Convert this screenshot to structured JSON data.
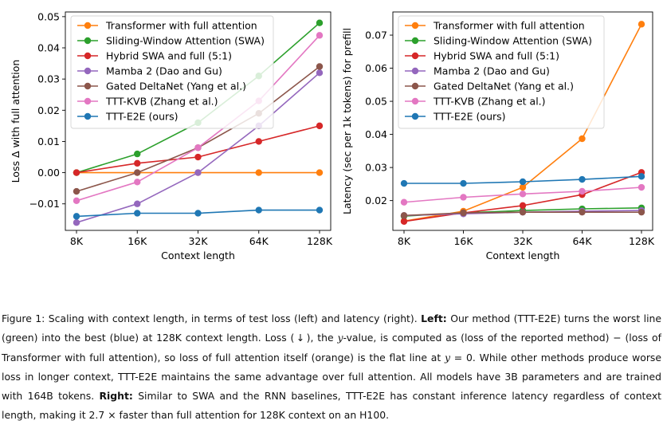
{
  "chart_data": [
    {
      "type": "line",
      "ylabel": "Loss Δ with full attention",
      "xlabel": "Context length",
      "categories": [
        "8K",
        "16K",
        "32K",
        "64K",
        "128K"
      ],
      "ylim": [
        -0.0185,
        0.0515
      ],
      "yticks": [
        -0.01,
        0.0,
        0.01,
        0.02,
        0.03,
        0.04,
        0.05
      ],
      "ytick_labels": [
        "−0.01",
        "0.00",
        "0.01",
        "0.02",
        "0.03",
        "0.04",
        "0.05"
      ],
      "legend_position": "top-left",
      "series": [
        {
          "name": "Transformer with full attention",
          "color": "#ff7f0e",
          "values": [
            0.0,
            0.0,
            0.0,
            0.0,
            0.0
          ]
        },
        {
          "name": "Sliding-Window Attention (SWA)",
          "color": "#2ca02c",
          "values": [
            0.0,
            0.006,
            0.016,
            0.031,
            0.048
          ]
        },
        {
          "name": "Hybrid SWA and full (5:1)",
          "color": "#d62728",
          "values": [
            0.0,
            0.003,
            0.005,
            0.01,
            0.015
          ]
        },
        {
          "name": "Mamba 2 (Dao and Gu)",
          "color": "#9467bd",
          "values": [
            -0.016,
            -0.01,
            0.0,
            0.015,
            0.032
          ]
        },
        {
          "name": "Gated DeltaNet (Yang et al.)",
          "color": "#8c564b",
          "values": [
            -0.006,
            0.0,
            0.008,
            0.019,
            0.034
          ]
        },
        {
          "name": "TTT-KVB (Zhang et al.)",
          "color": "#e377c2",
          "values": [
            -0.009,
            -0.003,
            0.008,
            0.023,
            0.044
          ]
        },
        {
          "name": "TTT-E2E (ours)",
          "color": "#1f77b4",
          "values": [
            -0.014,
            -0.013,
            -0.013,
            -0.012,
            -0.012
          ]
        }
      ]
    },
    {
      "type": "line",
      "ylabel": "Latency (sec per 1k tokens) for prefill",
      "xlabel": "Context length",
      "categories": [
        "8K",
        "16K",
        "32K",
        "64K",
        "128K"
      ],
      "ylim": [
        0.011,
        0.077
      ],
      "yticks": [
        0.02,
        0.03,
        0.04,
        0.05,
        0.06,
        0.07
      ],
      "ytick_labels": [
        "0.02",
        "0.03",
        "0.04",
        "0.05",
        "0.06",
        "0.07"
      ],
      "legend_position": "top-left",
      "series": [
        {
          "name": "Transformer with full attention",
          "color": "#ff7f0e",
          "values": [
            0.0138,
            0.0168,
            0.024,
            0.0387,
            0.0733
          ]
        },
        {
          "name": "Sliding-Window Attention (SWA)",
          "color": "#2ca02c",
          "values": [
            0.0153,
            0.0163,
            0.017,
            0.0175,
            0.0178
          ]
        },
        {
          "name": "Hybrid SWA and full (5:1)",
          "color": "#d62728",
          "values": [
            0.0137,
            0.0163,
            0.0185,
            0.0218,
            0.0285
          ]
        },
        {
          "name": "Mamba 2 (Dao and Gu)",
          "color": "#9467bd",
          "values": [
            0.0155,
            0.016,
            0.0165,
            0.0168,
            0.017
          ]
        },
        {
          "name": "Gated DeltaNet (Yang et al.)",
          "color": "#8c564b",
          "values": [
            0.0155,
            0.0163,
            0.0165,
            0.0165,
            0.0165
          ]
        },
        {
          "name": "TTT-KVB (Zhang et al.)",
          "color": "#e377c2",
          "values": [
            0.0195,
            0.021,
            0.022,
            0.0228,
            0.024
          ]
        },
        {
          "name": "TTT-E2E (ours)",
          "color": "#1f77b4",
          "values": [
            0.0252,
            0.0252,
            0.0257,
            0.0264,
            0.0273
          ]
        }
      ]
    }
  ],
  "caption": {
    "t1": "Figure 1: Scaling with context length, in terms of test loss (left) and latency (right). ",
    "left_label": "Left:",
    "t2": " Our method (TTT-E2E) turns the worst line (green) into the best (blue) at 128K context length. Loss ( ↓ ), the ",
    "var1": "y",
    "t3": "-value, is computed as (loss of the reported method) − (loss of Transformer with full attention), so loss of full attention itself (orange) is the flat line at ",
    "eq": "y",
    "t4": " = 0. While other methods produce worse loss in longer context, TTT-E2E maintains the same advantage over full attention. All models have 3B parameters and are trained with 164B tokens. ",
    "right_label": "Right:",
    "t5": " Similar to SWA and the RNN baselines, TTT-E2E has constant inference latency regardless of context length, making it 2.7 × faster than full attention for 128K context on an H100."
  }
}
